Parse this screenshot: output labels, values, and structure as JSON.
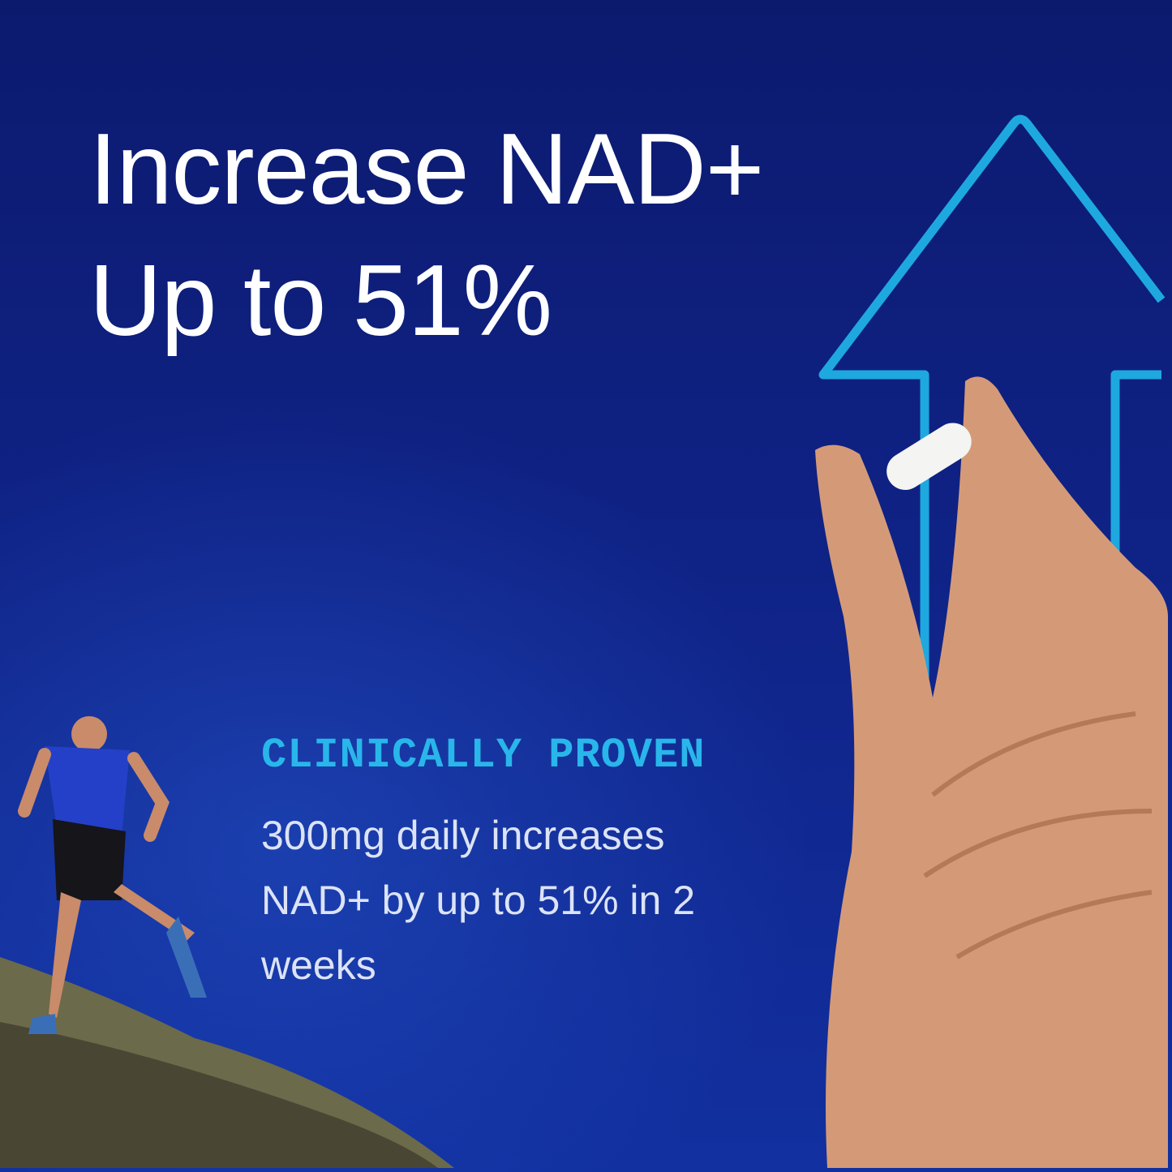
{
  "headline": {
    "line1": "Increase NAD+",
    "line2": "Up to 51%"
  },
  "claim": {
    "eyebrow": "CLINICALLY PROVEN",
    "text": "300mg daily increases NAD+ by up to 51% in 2 weeks"
  },
  "colors": {
    "background": "#0f2285",
    "accent": "#29b6ea",
    "arrow": "#1ea8e0",
    "text": "#ffffff"
  },
  "images": [
    "up-arrow-icon",
    "hand-holding-capsule",
    "runner-on-hill"
  ]
}
